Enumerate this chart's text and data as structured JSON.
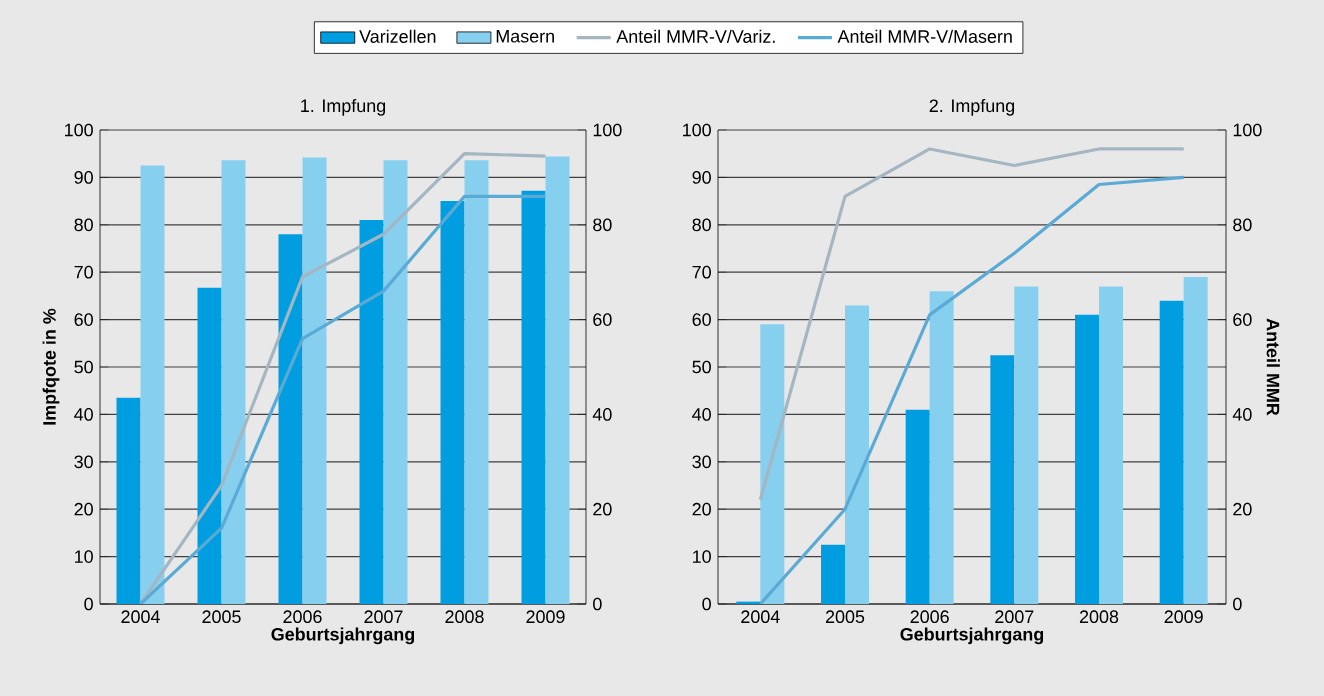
{
  "chart_data": [
    {
      "type": "bar",
      "title": "1. Impfung",
      "xlabel": "Geburtsjahrgang",
      "ylabel": "Impfqote in %",
      "categories": [
        "2004",
        "2005",
        "2006",
        "2007",
        "2008",
        "2009"
      ],
      "series": [
        {
          "name": "Varizellen",
          "color": "#009ee0",
          "values": [
            43.5,
            66.7,
            78,
            81,
            85,
            87.2
          ]
        },
        {
          "name": "Masern",
          "color": "#87cfef",
          "values": [
            92.5,
            93.6,
            94.2,
            93.6,
            93.6,
            94.4
          ]
        },
        {
          "name": "Anteil MMR-V/Variz.",
          "type": "line",
          "axis": "y2",
          "color": "#a3b6c2",
          "values": [
            0,
            25,
            69,
            78,
            95,
            94.5
          ]
        },
        {
          "name": "Anteil MMR-V/Masern",
          "type": "line",
          "axis": "y2",
          "color": "#5aaad6",
          "values": [
            0,
            16,
            56,
            66,
            86,
            86
          ]
        }
      ],
      "ylim": [
        0,
        100
      ],
      "yticks": [
        0,
        10,
        20,
        30,
        40,
        50,
        60,
        70,
        80,
        90,
        100
      ],
      "y2lim": [
        0,
        100
      ],
      "y2ticks": [
        0,
        20,
        40,
        60,
        80,
        100
      ],
      "grid": "y",
      "legend": "top"
    },
    {
      "type": "bar",
      "title": "2. Impfung",
      "xlabel": "Geburtsjahrgang",
      "y2label": "Anteil MMR",
      "categories": [
        "2004",
        "2005",
        "2006",
        "2007",
        "2008",
        "2009"
      ],
      "series": [
        {
          "color": "#009ee0",
          "values": [
            0.5,
            12.5,
            41,
            52.5,
            61,
            64
          ]
        },
        {
          "color": "#87cfef",
          "values": [
            59,
            63,
            66,
            67,
            67,
            69
          ]
        },
        {
          "type": "line",
          "axis": "y2",
          "color": "#a3b6c2",
          "values": [
            22,
            86,
            96,
            92.5,
            96,
            96
          ]
        },
        {
          "type": "line",
          "axis": "y2",
          "color": "#5aaad6",
          "values": [
            0,
            20,
            61,
            74,
            88.5,
            90
          ]
        }
      ],
      "ylim": [
        0,
        100
      ],
      "yticks": [
        0,
        10,
        20,
        30,
        40,
        50,
        60,
        70,
        80,
        90,
        100
      ],
      "y2lim": [
        0,
        100
      ],
      "y2ticks": [
        0,
        20,
        40,
        60,
        80,
        100
      ],
      "grid": "y"
    }
  ]
}
